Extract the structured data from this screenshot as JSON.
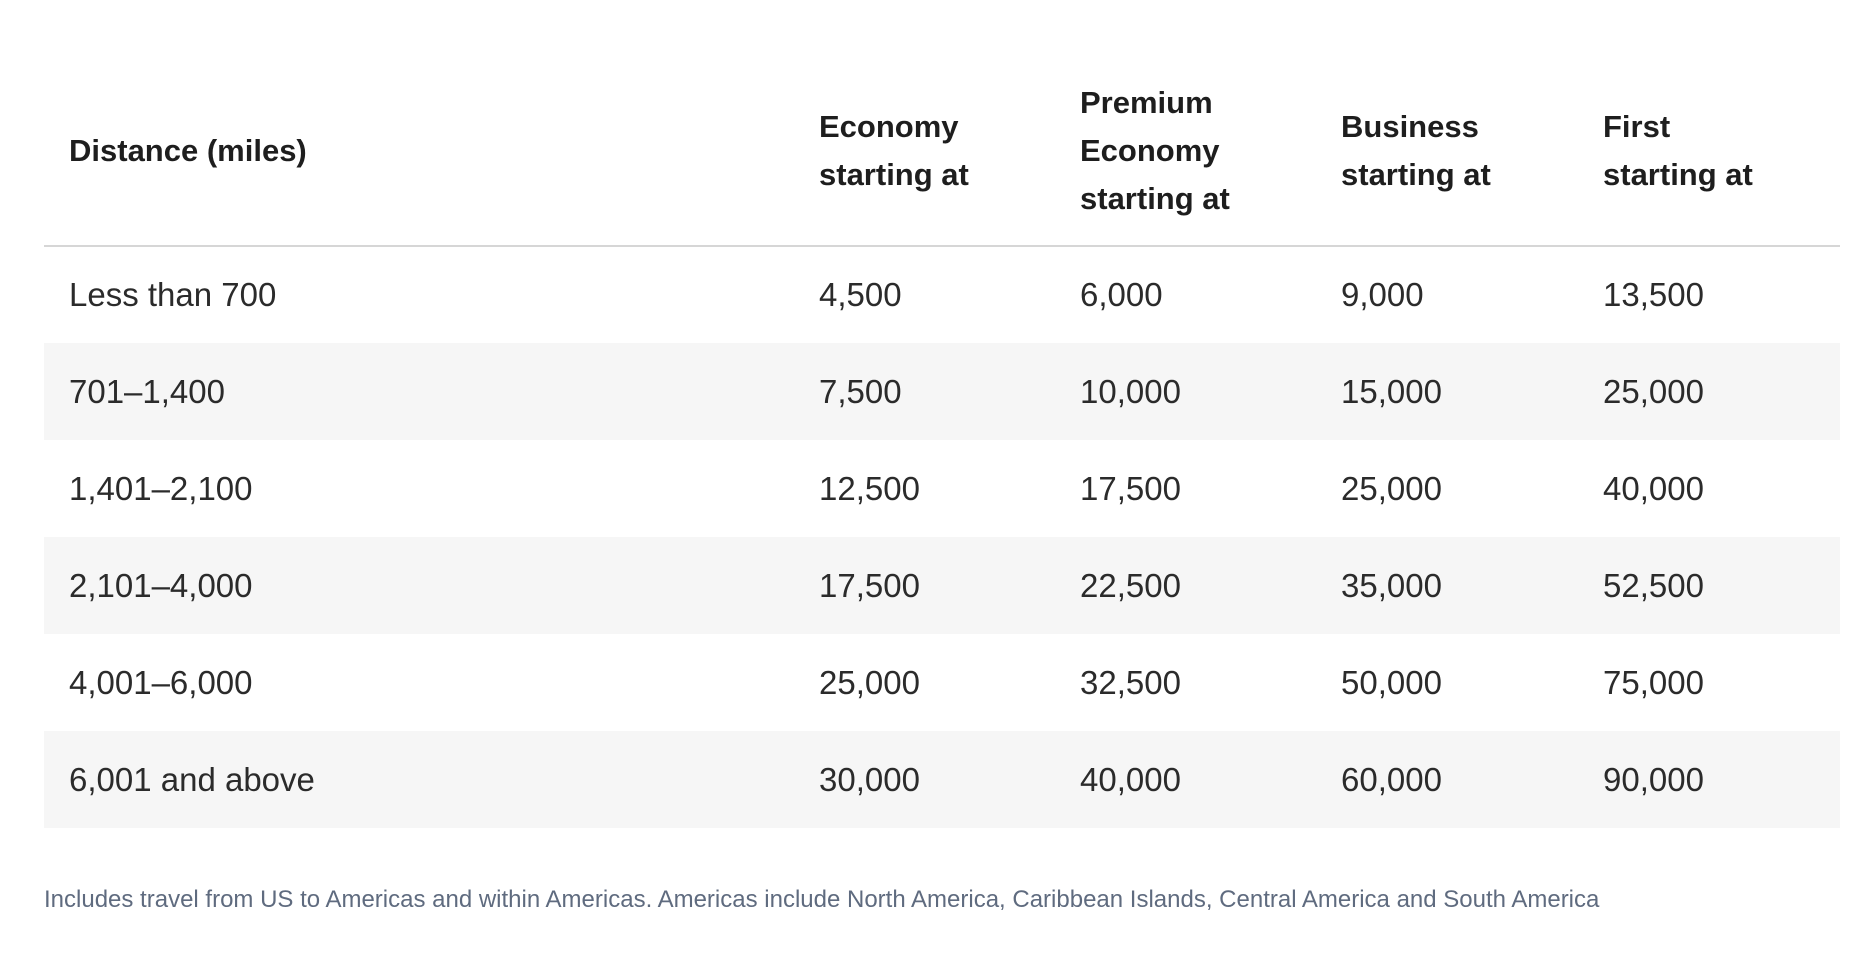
{
  "table": {
    "headers": [
      {
        "lines": [
          "Distance (miles)"
        ]
      },
      {
        "lines": [
          "Economy",
          "starting at"
        ]
      },
      {
        "lines": [
          "Premium",
          "Economy",
          "starting at"
        ]
      },
      {
        "lines": [
          "Business",
          "starting at"
        ]
      },
      {
        "lines": [
          "First",
          "starting at"
        ]
      }
    ],
    "rows": [
      [
        "Less than 700",
        "4,500",
        "6,000",
        "9,000",
        "13,500"
      ],
      [
        "701–1,400",
        "7,500",
        "10,000",
        "15,000",
        "25,000"
      ],
      [
        "1,401–2,100",
        "12,500",
        "17,500",
        "25,000",
        "40,000"
      ],
      [
        "2,101–4,000",
        "17,500",
        "22,500",
        "35,000",
        "52,500"
      ],
      [
        "4,001–6,000",
        "25,000",
        "32,500",
        "50,000",
        "75,000"
      ],
      [
        "6,001 and above",
        "30,000",
        "40,000",
        "60,000",
        "90,000"
      ]
    ]
  },
  "footnote": "Includes travel from US to Americas and within Americas. Americas include North America, Caribbean Islands, Central America and South America"
}
